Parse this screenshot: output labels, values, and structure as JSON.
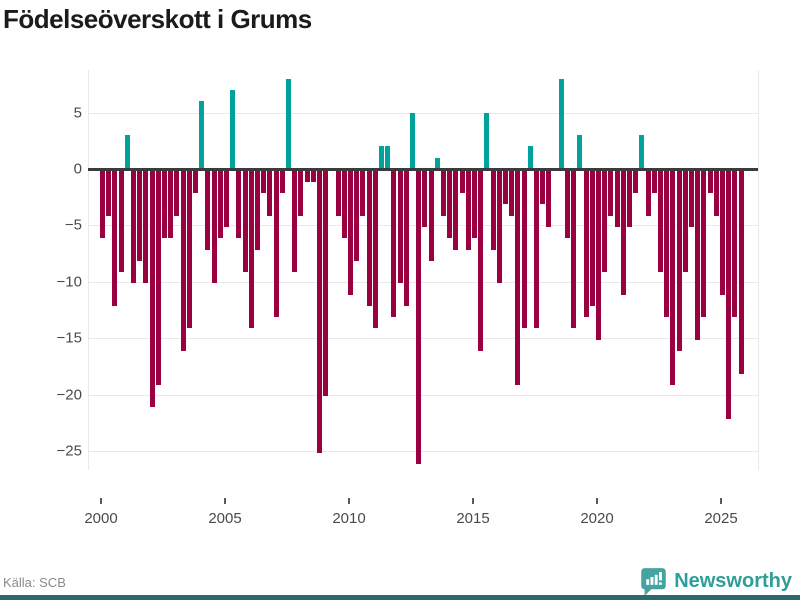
{
  "title": "Födelseöverskott i Grums",
  "source_label": "Källa: SCB",
  "brand": {
    "name": "Newsworthy",
    "logo_icon": "newsworthy-pin-icon",
    "color": "#2e9e99"
  },
  "colors": {
    "positive_bar": "#00a29c",
    "negative_bar": "#9b0140",
    "zero_line": "#3b3b3b",
    "gridline": "#e9e9e9",
    "bottom_strip": "#2e6b68"
  },
  "chart_data": {
    "type": "bar",
    "title": "Födelseöverskott i Grums",
    "frequency": "quarterly",
    "start": "2000-Q1",
    "end": "2025-Q4",
    "xlabel": "",
    "ylabel": "",
    "ylim": [
      -27,
      9
    ],
    "grid": "horizontal",
    "legend": "none",
    "y_ticks": [
      5,
      0,
      -5,
      -10,
      -15,
      -20,
      -25
    ],
    "y_tick_labels": [
      "5",
      "0",
      "−5",
      "−10",
      "−15",
      "−20",
      "−25"
    ],
    "x_tick_years": [
      2000,
      2005,
      2010,
      2015,
      2020,
      2025
    ],
    "x_tick_labels": [
      "2000",
      "2005",
      "2010",
      "2015",
      "2020",
      "2025"
    ],
    "series": [
      {
        "name": "Födelseöverskott",
        "years": [
          2000,
          2001,
          2002,
          2003,
          2004,
          2005,
          2006,
          2007,
          2008,
          2009,
          2010,
          2011,
          2012,
          2013,
          2014,
          2015,
          2016,
          2017,
          2018,
          2019,
          2020,
          2021,
          2022,
          2023,
          2024,
          2025
        ],
        "values_by_year_q1_to_q4": [
          [
            -6,
            -4,
            -12,
            -9
          ],
          [
            3,
            -10,
            -8,
            -10
          ],
          [
            -21,
            -19,
            -6,
            -6
          ],
          [
            -4,
            -16,
            -14,
            -2
          ],
          [
            6,
            -7,
            -10,
            -6
          ],
          [
            -5,
            7,
            -6,
            -9
          ],
          [
            -14,
            -7,
            -2,
            -4
          ],
          [
            -13,
            -2,
            8,
            -9
          ],
          [
            -4,
            -1,
            -1,
            -25
          ],
          [
            -20,
            0,
            -4,
            -6
          ],
          [
            -11,
            -8,
            -4,
            -12
          ],
          [
            -14,
            2,
            2,
            -13
          ],
          [
            -10,
            -12,
            5,
            -26
          ],
          [
            -5,
            -8,
            1,
            -4
          ],
          [
            -6,
            -7,
            -2,
            -7
          ],
          [
            -6,
            -16,
            5,
            -7
          ],
          [
            -10,
            -3,
            -4,
            -19
          ],
          [
            -14,
            2,
            -14,
            -3
          ],
          [
            -5,
            0,
            8,
            -6
          ],
          [
            -14,
            3,
            -13,
            -12
          ],
          [
            -15,
            -9,
            -4,
            -5
          ],
          [
            -11,
            -5,
            -2,
            3
          ],
          [
            -4,
            -2,
            -9,
            -13
          ],
          [
            -19,
            -16,
            -9,
            -5
          ],
          [
            -15,
            -13,
            -2,
            -4
          ],
          [
            -11,
            -22,
            -13,
            -18
          ]
        ]
      }
    ]
  }
}
